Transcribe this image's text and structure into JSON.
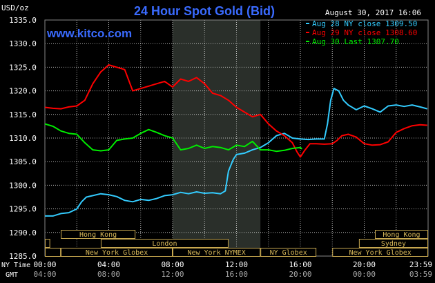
{
  "chart_data": {
    "type": "line",
    "title": "24 Hour Spot Gold (Bid)",
    "timestamp": "August 30, 2017 16:06",
    "source": "www.kitco.com",
    "ylabel": "USD/oz",
    "ylim": [
      1285,
      1335
    ],
    "yticks": [
      1335,
      1330,
      1325,
      1320,
      1315,
      1310,
      1305,
      1300,
      1295,
      1290,
      1285
    ],
    "ytick_labels": [
      "1335.0",
      "1330.0",
      "1325.0",
      "1320.0",
      "1315.0",
      "1310.0",
      "1305.0",
      "1300.0",
      "1295.0",
      "1290.0",
      "1285.0"
    ],
    "xlim": [
      0,
      24
    ],
    "xticks": [
      0,
      4,
      8,
      12,
      16,
      20,
      23.983
    ],
    "xtick_labels_ny": [
      "00:00",
      "04:00",
      "08:00",
      "12:00",
      "16:00",
      "20:00",
      "23:59"
    ],
    "xtick_labels_gmt": [
      "04:00",
      "08:00",
      "12:00",
      "16:00",
      "20:00",
      "00:00",
      "03:59"
    ],
    "row_label_ny": "NY Time",
    "row_label_gmt": "GMT",
    "shaded_region": [
      8.0,
      13.5
    ],
    "grid": true,
    "legend_position": "top-right",
    "series": [
      {
        "name": "Aug 28 NY close 1309.50",
        "color": "#33ccff",
        "x": [
          0,
          0.5,
          1.0,
          1.5,
          2.0,
          2.3,
          2.6,
          3.0,
          3.5,
          4.0,
          4.5,
          5.0,
          5.5,
          6.0,
          6.5,
          7.0,
          7.5,
          8.0,
          8.5,
          9.0,
          9.5,
          10.0,
          10.5,
          11.0,
          11.3,
          11.5,
          11.8,
          12.0,
          12.5,
          13.0,
          13.5,
          14.0,
          14.5,
          15.0,
          15.5,
          16.0,
          16.5,
          17.0,
          17.5,
          17.7,
          17.9,
          18.1,
          18.4,
          18.7,
          19.0,
          19.5,
          20.0,
          20.5,
          21.0,
          21.5,
          22.0,
          22.5,
          23.0,
          23.5,
          23.95
        ],
        "y": [
          1293.5,
          1293.5,
          1294.0,
          1294.2,
          1295.0,
          1296.5,
          1297.5,
          1297.8,
          1298.2,
          1298.0,
          1297.6,
          1296.8,
          1296.5,
          1297.0,
          1296.8,
          1297.2,
          1297.8,
          1298.0,
          1298.5,
          1298.2,
          1298.6,
          1298.3,
          1298.4,
          1298.2,
          1298.8,
          1303.0,
          1305.5,
          1306.5,
          1306.8,
          1307.5,
          1308.0,
          1309.0,
          1310.5,
          1311.0,
          1310.0,
          1309.8,
          1309.7,
          1309.8,
          1309.8,
          1313.0,
          1318.0,
          1320.5,
          1320.0,
          1318.0,
          1317.0,
          1316.0,
          1316.8,
          1316.2,
          1315.5,
          1316.8,
          1317.0,
          1316.7,
          1317.0,
          1316.6,
          1316.2
        ]
      },
      {
        "name": "Aug 29 NY close 1308.60",
        "color": "#ff0000",
        "x": [
          0,
          0.5,
          1.0,
          1.5,
          2.0,
          2.5,
          3.0,
          3.5,
          4.0,
          4.5,
          5.0,
          5.5,
          6.0,
          6.5,
          7.0,
          7.5,
          8.0,
          8.5,
          9.0,
          9.5,
          10.0,
          10.5,
          11.0,
          11.5,
          12.0,
          12.5,
          13.0,
          13.5,
          14.0,
          14.5,
          15.0,
          15.5,
          15.8,
          16.0,
          16.3,
          16.6,
          17.0,
          17.5,
          18.0,
          18.3,
          18.6,
          19.0,
          19.5,
          20.0,
          20.5,
          21.0,
          21.5,
          22.0,
          22.5,
          23.0,
          23.5,
          23.95
        ],
        "y": [
          1316.5,
          1316.3,
          1316.2,
          1316.6,
          1316.8,
          1318.0,
          1321.5,
          1324.0,
          1325.5,
          1325.0,
          1324.5,
          1320.0,
          1320.5,
          1321.0,
          1321.5,
          1322.0,
          1320.8,
          1322.5,
          1322.0,
          1322.8,
          1321.5,
          1319.5,
          1319.0,
          1318.0,
          1316.5,
          1315.5,
          1314.5,
          1315.0,
          1313.0,
          1311.5,
          1310.5,
          1309.0,
          1307.0,
          1306.0,
          1307.5,
          1308.8,
          1308.8,
          1308.7,
          1308.8,
          1309.5,
          1310.5,
          1310.8,
          1310.2,
          1308.8,
          1308.5,
          1308.6,
          1309.2,
          1311.2,
          1312.0,
          1312.6,
          1312.8,
          1312.7
        ]
      },
      {
        "name": "Aug 30 Last 1307.70",
        "color": "#00ee00",
        "x": [
          0,
          0.5,
          1.0,
          1.5,
          2.0,
          2.5,
          3.0,
          3.5,
          4.0,
          4.5,
          5.0,
          5.5,
          6.0,
          6.5,
          7.0,
          7.5,
          8.0,
          8.5,
          9.0,
          9.5,
          10.0,
          10.5,
          11.0,
          11.5,
          12.0,
          12.5,
          13.0,
          13.5,
          14.0,
          14.5,
          15.0,
          15.5,
          16.0,
          16.1
        ],
        "y": [
          1313.0,
          1312.5,
          1311.5,
          1311.0,
          1310.8,
          1309.0,
          1307.5,
          1307.3,
          1307.5,
          1309.5,
          1309.8,
          1310.0,
          1311.0,
          1311.8,
          1311.2,
          1310.5,
          1310.0,
          1307.5,
          1307.8,
          1308.5,
          1307.8,
          1308.2,
          1308.0,
          1307.5,
          1308.5,
          1308.2,
          1309.3,
          1307.5,
          1307.5,
          1307.2,
          1307.4,
          1307.8,
          1308.0,
          1307.7
        ]
      }
    ],
    "sessions": {
      "row1": [
        {
          "label": "Hong Kong",
          "start": 1.0,
          "end": 5.67
        },
        {
          "label": "Hong Kong",
          "start": 20.67,
          "end": 24.0
        }
      ],
      "row2": [
        {
          "label": "",
          "start": 0.0,
          "end": 0.33
        },
        {
          "label": "London",
          "start": 3.5,
          "end": 11.5
        },
        {
          "label": "Sydney",
          "start": 19.67,
          "end": 24.0
        }
      ],
      "row3": [
        {
          "label": "",
          "start": 0.0,
          "end": 1.0
        },
        {
          "label": "New York Globex",
          "start": 1.0,
          "end": 8.0
        },
        {
          "label": "New York NYMEX",
          "start": 8.0,
          "end": 13.5
        },
        {
          "label": "NY Globex",
          "start": 13.5,
          "end": 17.0
        },
        {
          "label": "New York Globex",
          "start": 18.0,
          "end": 24.0
        }
      ]
    }
  },
  "colors": {
    "background": "#000000",
    "plot_background": "#000000",
    "grid": "#ffffff",
    "shade": "#2a2f2a",
    "title": "#3a6bff",
    "source": "#3a6bff",
    "axis_text": "#ffffff",
    "gmt_text": "#aaaaaa",
    "session_fill": "#000000",
    "session_border": "#c8a850",
    "session_text": "#d7b85a"
  }
}
